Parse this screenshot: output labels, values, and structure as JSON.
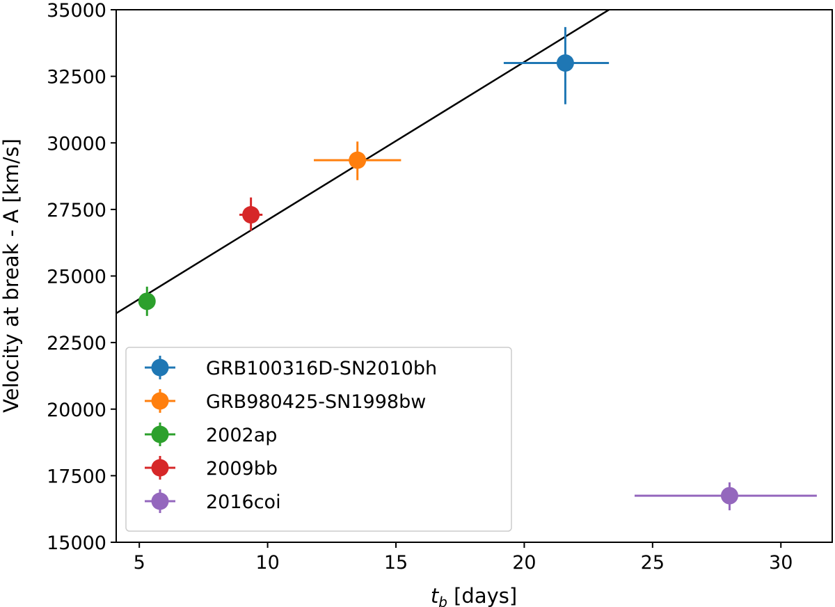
{
  "chart_data": {
    "type": "scatter",
    "title": "",
    "xlabel_main": "t",
    "xlabel_sub": "b",
    "xlabel_rest": " [days]",
    "ylabel": "Velocity at break - A [km/s]",
    "xlim": [
      4.1,
      32.0
    ],
    "ylim": [
      15000,
      35000
    ],
    "xticks": [
      5,
      10,
      15,
      20,
      25,
      30
    ],
    "yticks": [
      15000,
      17500,
      20000,
      22500,
      25000,
      27500,
      30000,
      32500,
      35000
    ],
    "grid": false,
    "legend_position": "lower-left",
    "fit_line": {
      "x": [
        4.1,
        23.3
      ],
      "y": [
        23600,
        35000
      ],
      "color": "#000000"
    },
    "series": [
      {
        "name": "GRB100316D-SN2010bh",
        "color": "#1f77b4",
        "x": 21.6,
        "y": 33000,
        "xerr": [
          2.4,
          1.7
        ],
        "yerr": [
          1550,
          1350
        ]
      },
      {
        "name": "GRB980425-SN1998bw",
        "color": "#ff7f0e",
        "x": 13.5,
        "y": 29350,
        "xerr": [
          1.7,
          1.7
        ],
        "yerr": [
          750,
          700
        ]
      },
      {
        "name": "2002ap",
        "color": "#2ca02c",
        "x": 5.3,
        "y": 24050,
        "xerr": [
          0.3,
          0.3
        ],
        "yerr": [
          550,
          550
        ]
      },
      {
        "name": "2009bb",
        "color": "#d62728",
        "x": 9.35,
        "y": 27300,
        "xerr": [
          0.45,
          0.45
        ],
        "yerr": [
          600,
          650
        ]
      },
      {
        "name": "2016coi",
        "color": "#9467bd",
        "x": 28.0,
        "y": 16750,
        "xerr": [
          3.7,
          3.4
        ],
        "yerr": [
          550,
          500
        ]
      }
    ]
  }
}
